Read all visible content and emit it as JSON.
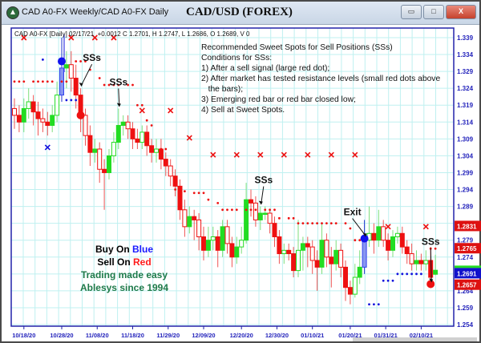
{
  "window": {
    "title": "CAD A0-FX Weekly/CAD A0-FX Daily",
    "chart_title": "CAD/USD (FOREX)",
    "buttons": {
      "minimize": "▭",
      "maximize": "□",
      "close": "X"
    }
  },
  "info_line": "CAD A0-FX [Daily] 02/17/21  +0.0012 C 1.2701, H 1.2747, L 1.2686, O 1.2689, V 0",
  "notes": {
    "title": "Recommended Sweet Spots for Sell Positions (SSs)",
    "subtitle": "Conditions for SSs:",
    "items": [
      "1) After a sell signal (large red dot);",
      "2) After market has tested resistance levels (small red dots above",
      "   the bars);",
      "3) Emerging red bar or red bar closed low;",
      "4) Sell at Sweet Spots."
    ]
  },
  "promo": {
    "buy_prefix": "Buy On ",
    "buy_word": "Blue",
    "sell_prefix": "Sell On ",
    "sell_word": "Red",
    "line3": "Trading made easy",
    "line4": "Ablesys since 1994"
  },
  "annotations": [
    {
      "text": "SSs",
      "bar": 14
    },
    {
      "text": "SSs",
      "bar": 22
    },
    {
      "text": "SSs",
      "bar": 52
    },
    {
      "text": "Exit",
      "bar": 74
    },
    {
      "text": "SSs",
      "bar": 88
    }
  ],
  "colors": {
    "up": "#22dd22",
    "down": "#ee1111",
    "signal_blue": "#1010dd",
    "axis": "#2222aa",
    "grid": "#bff0f0"
  },
  "chart_data": {
    "type": "candlestick",
    "ylim": [
      1.254,
      1.339
    ],
    "y_ticks": [
      "1.339",
      "1.334",
      "1.329",
      "1.324",
      "1.319",
      "1.314",
      "1.309",
      "1.304",
      "1.299",
      "1.294",
      "1.289",
      "1.279",
      "1.274",
      "1.264",
      "1.259",
      "1.254"
    ],
    "x_tick_labels": [
      "10/18/20",
      "10/28/20",
      "11/08/20",
      "11/18/20",
      "11/29/20",
      "12/09/20",
      "12/20/20",
      "12/30/20",
      "01/10/21",
      "01/20/21",
      "01/31/21",
      "02/10/21"
    ],
    "open": [
      1.318,
      1.316,
      1.314,
      1.318,
      1.32,
      1.317,
      1.315,
      1.314,
      1.313,
      1.316,
      1.322,
      1.33,
      1.331,
      1.327,
      1.322,
      1.316,
      1.31,
      1.305,
      1.306,
      1.3,
      1.299,
      1.304,
      1.308,
      1.313,
      1.314,
      1.312,
      1.309,
      1.308,
      1.311,
      1.307,
      1.305,
      1.306,
      1.303,
      1.301,
      1.298,
      1.295,
      1.288,
      1.283,
      1.286,
      1.285,
      1.28,
      1.276,
      1.279,
      1.28,
      1.276,
      1.283,
      1.278,
      1.274,
      1.277,
      1.279,
      1.291,
      1.29,
      1.285,
      1.287,
      1.287,
      1.284,
      1.28,
      1.275,
      1.276,
      1.275,
      1.27,
      1.276,
      1.278,
      1.277,
      1.273,
      1.271,
      1.279,
      1.274,
      1.272,
      1.276,
      1.271,
      1.265,
      1.263,
      1.268,
      1.271,
      1.279,
      1.281,
      1.279,
      1.283,
      1.279,
      1.276,
      1.28,
      1.281,
      1.277,
      1.275,
      1.272,
      1.273,
      1.272,
      1.273,
      1.2689
    ],
    "high": [
      1.321,
      1.319,
      1.321,
      1.324,
      1.322,
      1.32,
      1.318,
      1.317,
      1.319,
      1.326,
      1.339,
      1.335,
      1.335,
      1.331,
      1.324,
      1.318,
      1.313,
      1.309,
      1.308,
      1.303,
      1.306,
      1.311,
      1.318,
      1.316,
      1.316,
      1.314,
      1.312,
      1.313,
      1.313,
      1.309,
      1.309,
      1.309,
      1.305,
      1.303,
      1.3,
      1.297,
      1.291,
      1.289,
      1.288,
      1.287,
      1.283,
      1.283,
      1.283,
      1.282,
      1.285,
      1.285,
      1.28,
      1.28,
      1.283,
      1.296,
      1.294,
      1.292,
      1.289,
      1.289,
      1.288,
      1.286,
      1.282,
      1.278,
      1.278,
      1.277,
      1.285,
      1.28,
      1.28,
      1.279,
      1.276,
      1.284,
      1.281,
      1.277,
      1.279,
      1.278,
      1.273,
      1.267,
      1.272,
      1.276,
      1.285,
      1.289,
      1.284,
      1.288,
      1.285,
      1.281,
      1.282,
      1.283,
      1.283,
      1.279,
      1.278,
      1.276,
      1.275,
      1.276,
      1.277,
      1.2747
    ],
    "low": [
      1.312,
      1.311,
      1.311,
      1.315,
      1.313,
      1.31,
      1.311,
      1.31,
      1.311,
      1.314,
      1.32,
      1.324,
      1.323,
      1.318,
      1.311,
      1.307,
      1.301,
      1.302,
      1.296,
      1.288,
      1.297,
      1.302,
      1.306,
      1.31,
      1.309,
      1.306,
      1.306,
      1.306,
      1.304,
      1.302,
      1.302,
      1.3,
      1.298,
      1.295,
      1.292,
      1.285,
      1.28,
      1.281,
      1.279,
      1.276,
      1.273,
      1.274,
      1.276,
      1.271,
      1.274,
      1.275,
      1.271,
      1.272,
      1.275,
      1.278,
      1.286,
      1.283,
      1.282,
      1.285,
      1.281,
      1.277,
      1.272,
      1.272,
      1.273,
      1.268,
      1.268,
      1.27,
      1.271,
      1.269,
      1.264,
      1.269,
      1.271,
      1.265,
      1.27,
      1.268,
      1.261,
      1.26,
      1.262,
      1.266,
      1.269,
      1.277,
      1.275,
      1.277,
      1.277,
      1.273,
      1.274,
      1.278,
      1.275,
      1.272,
      1.27,
      1.27,
      1.27,
      1.27,
      1.265,
      1.2686
    ],
    "close": [
      1.316,
      1.314,
      1.318,
      1.32,
      1.317,
      1.315,
      1.314,
      1.313,
      1.316,
      1.322,
      1.33,
      1.331,
      1.327,
      1.322,
      1.316,
      1.31,
      1.305,
      1.306,
      1.3,
      1.299,
      1.304,
      1.308,
      1.313,
      1.314,
      1.312,
      1.309,
      1.308,
      1.311,
      1.307,
      1.305,
      1.306,
      1.303,
      1.301,
      1.298,
      1.295,
      1.288,
      1.283,
      1.286,
      1.285,
      1.28,
      1.276,
      1.279,
      1.28,
      1.276,
      1.283,
      1.278,
      1.274,
      1.277,
      1.279,
      1.291,
      1.29,
      1.285,
      1.287,
      1.287,
      1.284,
      1.28,
      1.275,
      1.276,
      1.275,
      1.27,
      1.276,
      1.278,
      1.277,
      1.273,
      1.271,
      1.279,
      1.274,
      1.272,
      1.276,
      1.271,
      1.265,
      1.263,
      1.268,
      1.271,
      1.279,
      1.281,
      1.279,
      1.283,
      1.279,
      1.276,
      1.28,
      1.281,
      1.277,
      1.275,
      1.272,
      1.273,
      1.272,
      1.273,
      1.268,
      1.2701
    ],
    "blue_bars": [
      10,
      74
    ],
    "resistance_dots": [
      [
        0,
        1.326
      ],
      [
        1,
        1.326
      ],
      [
        2,
        1.326
      ],
      [
        4,
        1.326
      ],
      [
        5,
        1.326
      ],
      [
        6,
        1.326
      ],
      [
        7,
        1.326
      ],
      [
        8,
        1.326
      ],
      [
        10,
        1.326
      ],
      [
        11,
        1.326
      ],
      [
        13,
        1.332
      ],
      [
        14,
        1.332
      ],
      [
        15,
        1.332
      ],
      [
        16,
        1.3295
      ],
      [
        18,
        1.327
      ],
      [
        19,
        1.325
      ],
      [
        20,
        1.325
      ],
      [
        21,
        1.325
      ],
      [
        22,
        1.325
      ],
      [
        24,
        1.325
      ],
      [
        25,
        1.325
      ],
      [
        26,
        1.319
      ],
      [
        27,
        1.319
      ],
      [
        28,
        1.3145
      ],
      [
        29,
        1.313
      ],
      [
        31,
        1.306
      ],
      [
        32,
        1.306
      ],
      [
        34,
        1.294
      ],
      [
        36,
        1.2935
      ],
      [
        38,
        1.293
      ],
      [
        39,
        1.293
      ],
      [
        40,
        1.293
      ],
      [
        41,
        1.291
      ],
      [
        43,
        1.29
      ],
      [
        44,
        1.288
      ],
      [
        45,
        1.288
      ],
      [
        46,
        1.288
      ],
      [
        47,
        1.288
      ],
      [
        49,
        1.288
      ],
      [
        50,
        1.288
      ],
      [
        51,
        1.288
      ],
      [
        53,
        1.288
      ],
      [
        54,
        1.288
      ],
      [
        55,
        1.288
      ],
      [
        56,
        1.2855
      ],
      [
        58,
        1.2855
      ],
      [
        59,
        1.2855
      ],
      [
        60,
        1.284
      ],
      [
        61,
        1.284
      ],
      [
        62,
        1.284
      ],
      [
        63,
        1.284
      ],
      [
        64,
        1.284
      ],
      [
        65,
        1.284
      ],
      [
        66,
        1.284
      ],
      [
        67,
        1.284
      ],
      [
        68,
        1.284
      ],
      [
        70,
        1.284
      ],
      [
        71,
        1.2825
      ],
      [
        72,
        1.279
      ],
      [
        73,
        1.279
      ],
      [
        88,
        1.2765
      ],
      [
        89,
        1.2765
      ]
    ],
    "support_dots": [
      [
        6,
        1.3325
      ],
      [
        11,
        1.3205
      ],
      [
        12,
        1.3205
      ],
      [
        13,
        1.3205
      ],
      [
        75,
        1.26
      ],
      [
        76,
        1.26
      ],
      [
        77,
        1.26
      ],
      [
        78,
        1.267
      ],
      [
        79,
        1.267
      ],
      [
        80,
        1.267
      ],
      [
        81,
        1.269
      ],
      [
        82,
        1.269
      ],
      [
        83,
        1.269
      ],
      [
        84,
        1.269
      ],
      [
        85,
        1.269
      ],
      [
        86,
        1.269
      ]
    ],
    "buy_signals": [
      [
        10,
        1.332
      ],
      [
        74,
        1.2795
      ]
    ],
    "sell_signals": [
      [
        14,
        1.316
      ],
      [
        88,
        1.266
      ]
    ],
    "red_x": [
      [
        2,
        1.339
      ],
      [
        12,
        1.339
      ],
      [
        17,
        1.339
      ],
      [
        21,
        1.339
      ],
      [
        27,
        1.3174
      ],
      [
        33,
        1.3174
      ],
      [
        37,
        1.3093
      ],
      [
        42,
        1.3043
      ],
      [
        47,
        1.3043
      ],
      [
        52,
        1.3043
      ],
      [
        57,
        1.3043
      ],
      [
        62,
        1.3043
      ],
      [
        67,
        1.3043
      ],
      [
        72,
        1.3043
      ],
      [
        79,
        1.283
      ],
      [
        87,
        1.283
      ]
    ],
    "blue_x": [
      [
        7,
        1.3065
      ]
    ],
    "price_markers": [
      {
        "label": "1.2831",
        "value": 1.2831,
        "color": "#dd1111"
      },
      {
        "label": "1.2765",
        "value": 1.2765,
        "color": "#dd1111"
      },
      {
        "label": "1.2691",
        "value": 1.2691,
        "color": "#1111cc"
      },
      {
        "label": "1.2657",
        "value": 1.2657,
        "color": "#dd1111"
      }
    ]
  }
}
